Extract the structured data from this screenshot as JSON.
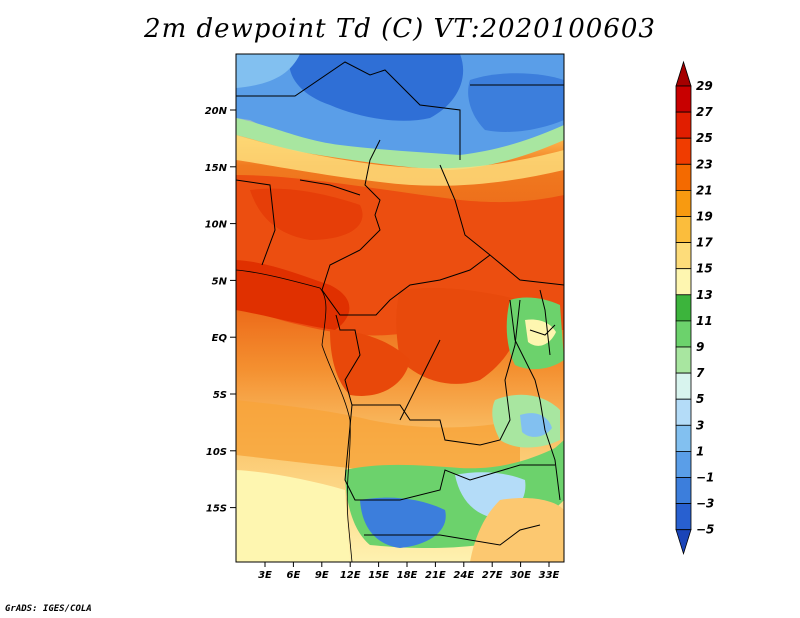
{
  "title": "2m dewpoint Td (C) VT:2020100603",
  "credit": "GrADS: IGES/COLA",
  "map": {
    "lat_labels": [
      "20N",
      "15N",
      "10N",
      "5N",
      "EQ",
      "5S",
      "10S",
      "15S"
    ],
    "lon_labels": [
      "3E",
      "6E",
      "9E",
      "12E",
      "15E",
      "18E",
      "21E",
      "24E",
      "27E",
      "30E",
      "33E"
    ]
  },
  "colorbar": {
    "labels": [
      "29",
      "27",
      "25",
      "23",
      "21",
      "19",
      "17",
      "15",
      "13",
      "11",
      "9",
      "7",
      "5",
      "3",
      "1",
      "-1",
      "-3",
      "-5"
    ],
    "colors": [
      "#a50000",
      "#c80000",
      "#e11e00",
      "#f03c00",
      "#f46a00",
      "#f89a10",
      "#fbbd3c",
      "#fddc7a",
      "#fef6b0",
      "#3cb43c",
      "#6cd26c",
      "#a8e6a0",
      "#d8f4ee",
      "#b4dcf8",
      "#82c0f0",
      "#5a9ee8",
      "#3c7edc",
      "#2860d0",
      "#1a44b8"
    ]
  }
}
